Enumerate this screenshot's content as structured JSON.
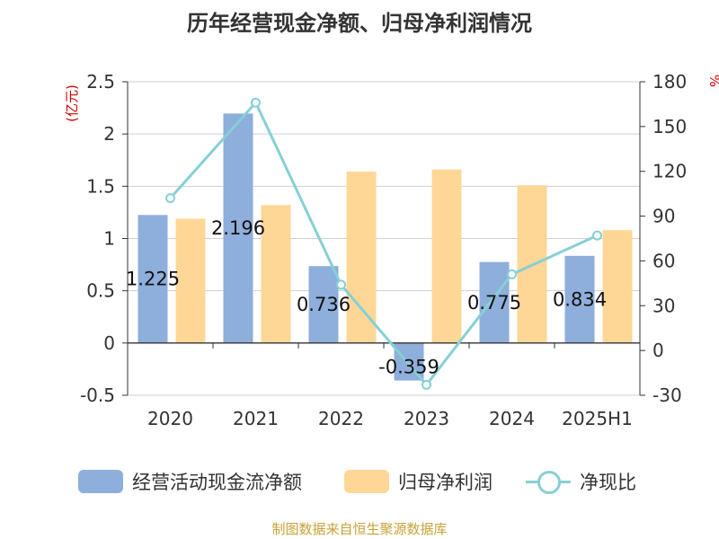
{
  "title": "历年经营现金净额、归母净利润情况",
  "source": "制图数据来自恒生聚源数据库",
  "left_axis_unit": "(亿元)",
  "right_axis_unit": "%",
  "legend": {
    "cash": "经营活动现金流净额",
    "profit": "归母净利润",
    "ratio": "净现比"
  },
  "colors": {
    "cash": "#8eaedb",
    "profit": "#fed797",
    "ratio": "#86d0d5",
    "unit": "#d40000",
    "axis": "#333333",
    "grid": "#cfcfcf"
  },
  "chart_data": {
    "type": "bar",
    "categories": [
      "2020",
      "2021",
      "2022",
      "2023",
      "2024",
      "2025H1"
    ],
    "y_left": {
      "min": -0.5,
      "max": 2.5,
      "ticks": [
        "-0.5",
        "0",
        "0.5",
        "1",
        "1.5",
        "2",
        "2.5"
      ]
    },
    "y_right": {
      "min": -30,
      "max": 180,
      "ticks": [
        "-30",
        "0",
        "30",
        "60",
        "90",
        "120",
        "150",
        "180"
      ]
    },
    "grid": true,
    "legend_position": "bottom",
    "series": [
      {
        "name": "经营活动现金流净额",
        "type": "bar",
        "axis": "left",
        "values": [
          1.225,
          2.196,
          0.736,
          -0.359,
          0.775,
          0.834
        ],
        "labels": [
          "1.225",
          "2.196",
          "0.736",
          "-0.359",
          "0.775",
          "0.834"
        ]
      },
      {
        "name": "归母净利润",
        "type": "bar",
        "axis": "left",
        "values": [
          1.19,
          1.32,
          1.64,
          1.66,
          1.51,
          1.08
        ]
      },
      {
        "name": "净现比",
        "type": "line",
        "axis": "right",
        "values": [
          102,
          166,
          44,
          -23,
          51,
          77
        ]
      }
    ]
  }
}
